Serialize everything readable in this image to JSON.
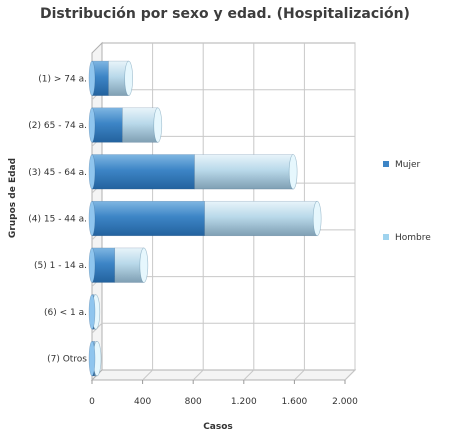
{
  "chart_data": {
    "type": "bar",
    "orientation": "horizontal",
    "stacked": true,
    "title": "Distribución por sexo y edad. (Hospitalización)",
    "xlabel": "Casos",
    "ylabel": "Grupos de Edad",
    "xlim": [
      0,
      2000
    ],
    "x_ticks": [
      "0",
      "400",
      "800",
      "1.200",
      "1.600",
      "2.000"
    ],
    "x_tick_values": [
      0,
      400,
      800,
      1200,
      1600,
      2000
    ],
    "grid": true,
    "legend_position": "right",
    "categories": [
      "(1) > 74 a.",
      "(2) 65 - 74 a.",
      "(3) 45 - 64 a.",
      "(4) 15 - 44 a.",
      "(5) 1 - 14 a.",
      "(6) < 1 a.",
      "(7) Otros"
    ],
    "series": [
      {
        "name": "Mujer",
        "color": "#3d85c6",
        "values": [
          130,
          240,
          810,
          890,
          180,
          15,
          20
        ]
      },
      {
        "name": "Hombre",
        "color": "#9fd3ee",
        "values": [
          160,
          280,
          780,
          890,
          230,
          15,
          20
        ]
      }
    ]
  }
}
